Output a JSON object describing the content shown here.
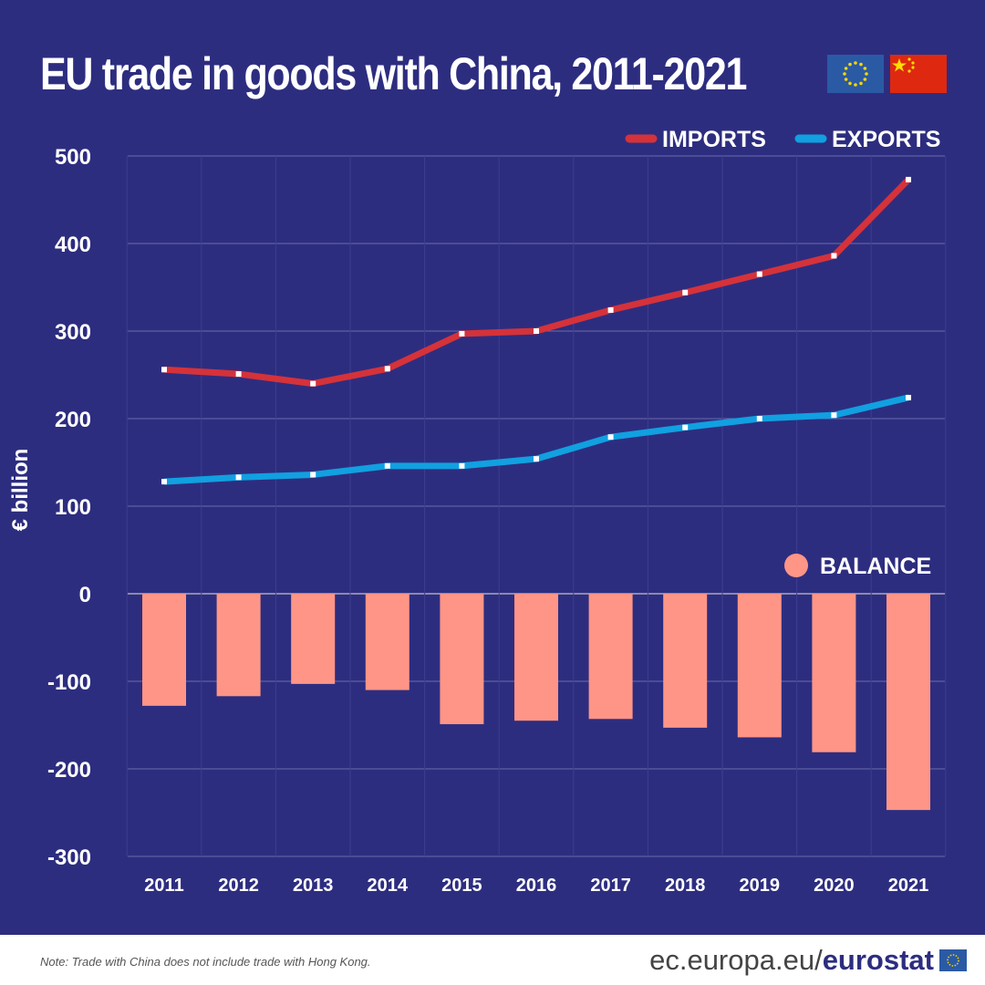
{
  "title": "EU trade in goods with China, 2011-2021",
  "flags": [
    "eu-flag",
    "china-flag"
  ],
  "colors": {
    "background": "#2d2d80",
    "imports": "#d5323a",
    "exports": "#11a0e0",
    "balance": "#ff9586"
  },
  "chart_data": {
    "type": "line+bar",
    "title": "EU trade in goods with China, 2011-2021",
    "ylabel": "€ billion",
    "ylim": [
      -300,
      500
    ],
    "yticks": [
      500,
      400,
      300,
      200,
      100,
      0,
      -100,
      -200,
      -300
    ],
    "categories": [
      "2011",
      "2012",
      "2013",
      "2014",
      "2015",
      "2016",
      "2017",
      "2018",
      "2019",
      "2020",
      "2021"
    ],
    "grid": true,
    "series": [
      {
        "name": "IMPORTS",
        "type": "line",
        "values": [
          256,
          251,
          240,
          257,
          297,
          300,
          324,
          344,
          365,
          386,
          473
        ]
      },
      {
        "name": "EXPORTS",
        "type": "line",
        "values": [
          128,
          133,
          136,
          146,
          146,
          154,
          179,
          190,
          200,
          204,
          224
        ]
      },
      {
        "name": "BALANCE",
        "type": "bar",
        "values": [
          -128,
          -117,
          -103,
          -110,
          -149,
          -145,
          -143,
          -153,
          -164,
          -181,
          -247
        ]
      }
    ],
    "legend": "top-right"
  },
  "footer": {
    "note": "Note: Trade with China does not include trade with Hong Kong.",
    "brand_prefix": "ec.europa.eu/",
    "brand_name": "eurostat"
  }
}
